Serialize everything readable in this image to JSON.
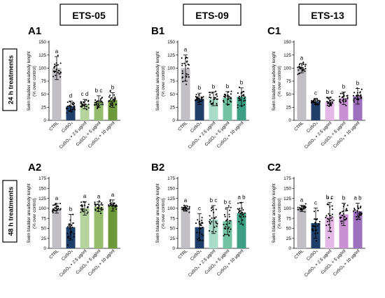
{
  "columns": [
    "ETS-05",
    "ETS-09",
    "ETS-13"
  ],
  "row_labels": [
    "24 h treatments",
    "48 h treatments"
  ],
  "colors": {
    "ctrl": "#c2bfc4",
    "ETS-05": [
      "#1f3f6a",
      "#b5d49b",
      "#94bc6c",
      "#6c9a3a"
    ],
    "ETS-09": [
      "#1f3f6a",
      "#a9dcc9",
      "#72c3a4",
      "#3d9f84"
    ],
    "ETS-13": [
      "#1f3f6a",
      "#e3b8e6",
      "#c990d3",
      "#9d6fbc"
    ]
  },
  "chart_data": [
    {
      "panel": "A1",
      "type": "bar",
      "ylabel": "Swim bladder area/body lenght\n(% over control)",
      "ylim": [
        0,
        150
      ],
      "yticks": [
        0,
        25,
        50,
        75,
        100,
        125,
        150
      ],
      "categories": [
        "CTRL",
        "CuSO₄",
        "CuSO₄ + 2.5 μg/ml",
        "CuSO₄ + 5 μg/ml",
        "CuSO₄ + 10 μg/ml"
      ],
      "values": [
        100,
        27,
        31,
        36,
        39
      ],
      "errors": [
        22,
        10,
        9,
        11,
        14
      ],
      "letters": [
        "a",
        "d",
        "c d",
        "b c",
        "b"
      ]
    },
    {
      "panel": "B1",
      "type": "bar",
      "ylabel": "Swim bladder area/body lenght\n(% over control)",
      "ylim": [
        0,
        150
      ],
      "yticks": [
        0,
        25,
        50,
        75,
        100,
        125,
        150
      ],
      "categories": [
        "CTRL",
        "CuSO₄",
        "CuSO₄ + 2.5 μg/ml",
        "CuSO₄ + 5 μg/ml",
        "CuSO₄ + 10 μg/ml"
      ],
      "values": [
        100,
        41,
        41,
        43,
        45
      ],
      "errors": [
        25,
        11,
        13,
        12,
        17
      ],
      "letters": [
        "a",
        "b",
        "b",
        "b",
        "b"
      ]
    },
    {
      "panel": "C1",
      "type": "bar",
      "ylabel": "Swim bladder area/body lenght\n(% over control)",
      "ylim": [
        0,
        150
      ],
      "yticks": [
        0,
        25,
        50,
        75,
        100,
        125,
        150
      ],
      "categories": [
        "CTRL",
        "CuSO₄",
        "CuSO₄ + 2.5 μg/ml",
        "CuSO₄ + 5 μg/ml",
        "CuSO₄ + 10 μg/ml"
      ],
      "values": [
        100,
        36,
        36,
        42,
        46
      ],
      "errors": [
        9,
        6,
        8,
        12,
        15
      ],
      "letters": [
        "a",
        "c",
        "b c",
        "b",
        "b"
      ]
    },
    {
      "panel": "A2",
      "type": "bar",
      "ylabel": "Swim bladder area/body lenght\n(% over control)",
      "ylim": [
        0,
        175
      ],
      "yticks": [
        0,
        25,
        50,
        75,
        100,
        125,
        150,
        175
      ],
      "categories": [
        "CTRL",
        "CuSO₄",
        "CuSO₄ + 2.5 μg/ml",
        "CuSO₄ + 5 μg/ml",
        "CuSO₄ + 10 μg/ml"
      ],
      "values": [
        100,
        53,
        100,
        104,
        107
      ],
      "errors": [
        12,
        32,
        17,
        12,
        14
      ],
      "letters": [
        "a",
        "b",
        "a",
        "a",
        "a"
      ]
    },
    {
      "panel": "B2",
      "type": "bar",
      "ylabel": "Swim bladder area/body lenght\n(% over control)",
      "ylim": [
        0,
        175
      ],
      "yticks": [
        0,
        25,
        50,
        75,
        100,
        125,
        150,
        175
      ],
      "categories": [
        "CTRL",
        "CuSO₄",
        "CuSO₄ + 2.5 μg/ml",
        "CuSO₄ + 5 μg/ml",
        "CuSO₄ + 10 μg/ml"
      ],
      "values": [
        100,
        53,
        72,
        68,
        88
      ],
      "errors": [
        7,
        34,
        35,
        34,
        27
      ],
      "letters": [
        "a",
        "c",
        "b c",
        "b c",
        "a b"
      ]
    },
    {
      "panel": "C2",
      "type": "bar",
      "ylabel": "Swim bladder area/body lenght\n(% over control)",
      "ylim": [
        0,
        175
      ],
      "yticks": [
        0,
        25,
        50,
        75,
        100,
        125,
        150,
        175
      ],
      "categories": [
        "CTRL",
        "CuSO₄",
        "CuSO₄ + 2.5 μg/ml",
        "CuSO₄ + 5 μg/ml",
        "CuSO₄ + 10 μg/ml"
      ],
      "values": [
        100,
        63,
        79,
        85,
        93
      ],
      "errors": [
        8,
        38,
        36,
        28,
        20
      ],
      "letters": [
        "a",
        "c",
        "b c",
        "b",
        "a b"
      ]
    }
  ]
}
